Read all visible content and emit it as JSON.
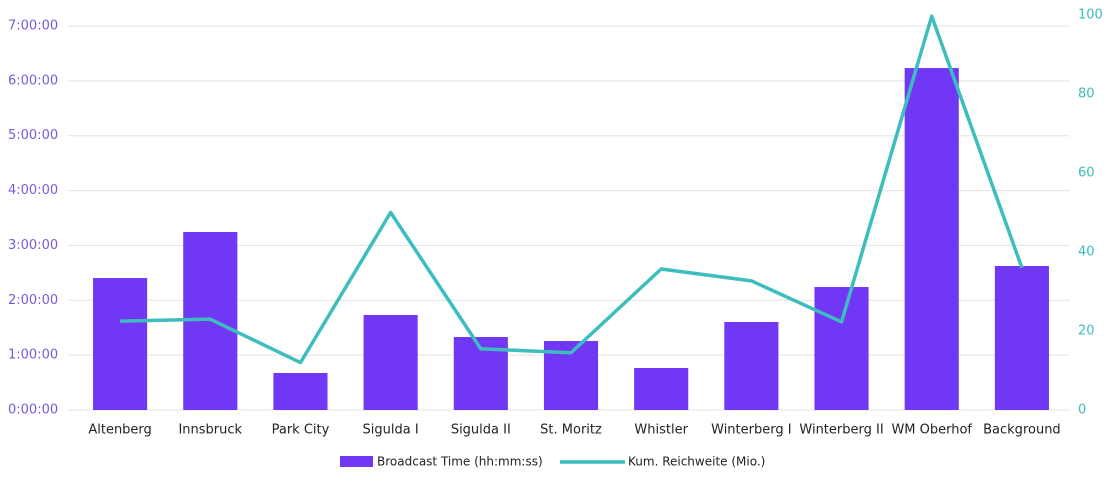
{
  "chart_data": {
    "type": "bar",
    "categories": [
      "Altenberg",
      "Innsbruck",
      "Park City",
      "Sigulda I",
      "Sigulda II",
      "St. Moritz",
      "Whistler",
      "Winterberg I",
      "Winterberg II",
      "WM Oberhof",
      "Background"
    ],
    "series": [
      {
        "name": "Broadcast Time (hh:mm:ss)",
        "type": "bar",
        "color": "#7038f5",
        "values": [
          8660,
          11680,
          2430,
          6235,
          4790,
          4530,
          2755,
          5775,
          8070,
          22440,
          9450
        ]
      },
      {
        "name": "Kum. Reichweite (Mio.)",
        "type": "line",
        "axis": "y2",
        "color": "#3dbdbd",
        "values": [
          22.5,
          23,
          12,
          50,
          15.5,
          14.5,
          35.7,
          32.7,
          22.3,
          99.7,
          36
        ]
      }
    ],
    "ylim": [
      0,
      25200
    ],
    "yticks": [
      {
        "value": 0,
        "label": "0:00:00"
      },
      {
        "value": 3600,
        "label": "1:00:00"
      },
      {
        "value": 7200,
        "label": "2:00:00"
      },
      {
        "value": 10800,
        "label": "3:00:00"
      },
      {
        "value": 14400,
        "label": "4:00:00"
      },
      {
        "value": 18000,
        "label": "5:00:00"
      },
      {
        "value": 21600,
        "label": "6:00:00"
      },
      {
        "value": 25200,
        "label": "7:00:00"
      }
    ],
    "y2lim": [
      0,
      100
    ],
    "y2ticks": [
      0,
      20,
      40,
      60,
      80,
      100
    ],
    "grid": true,
    "legend": "bottom"
  }
}
